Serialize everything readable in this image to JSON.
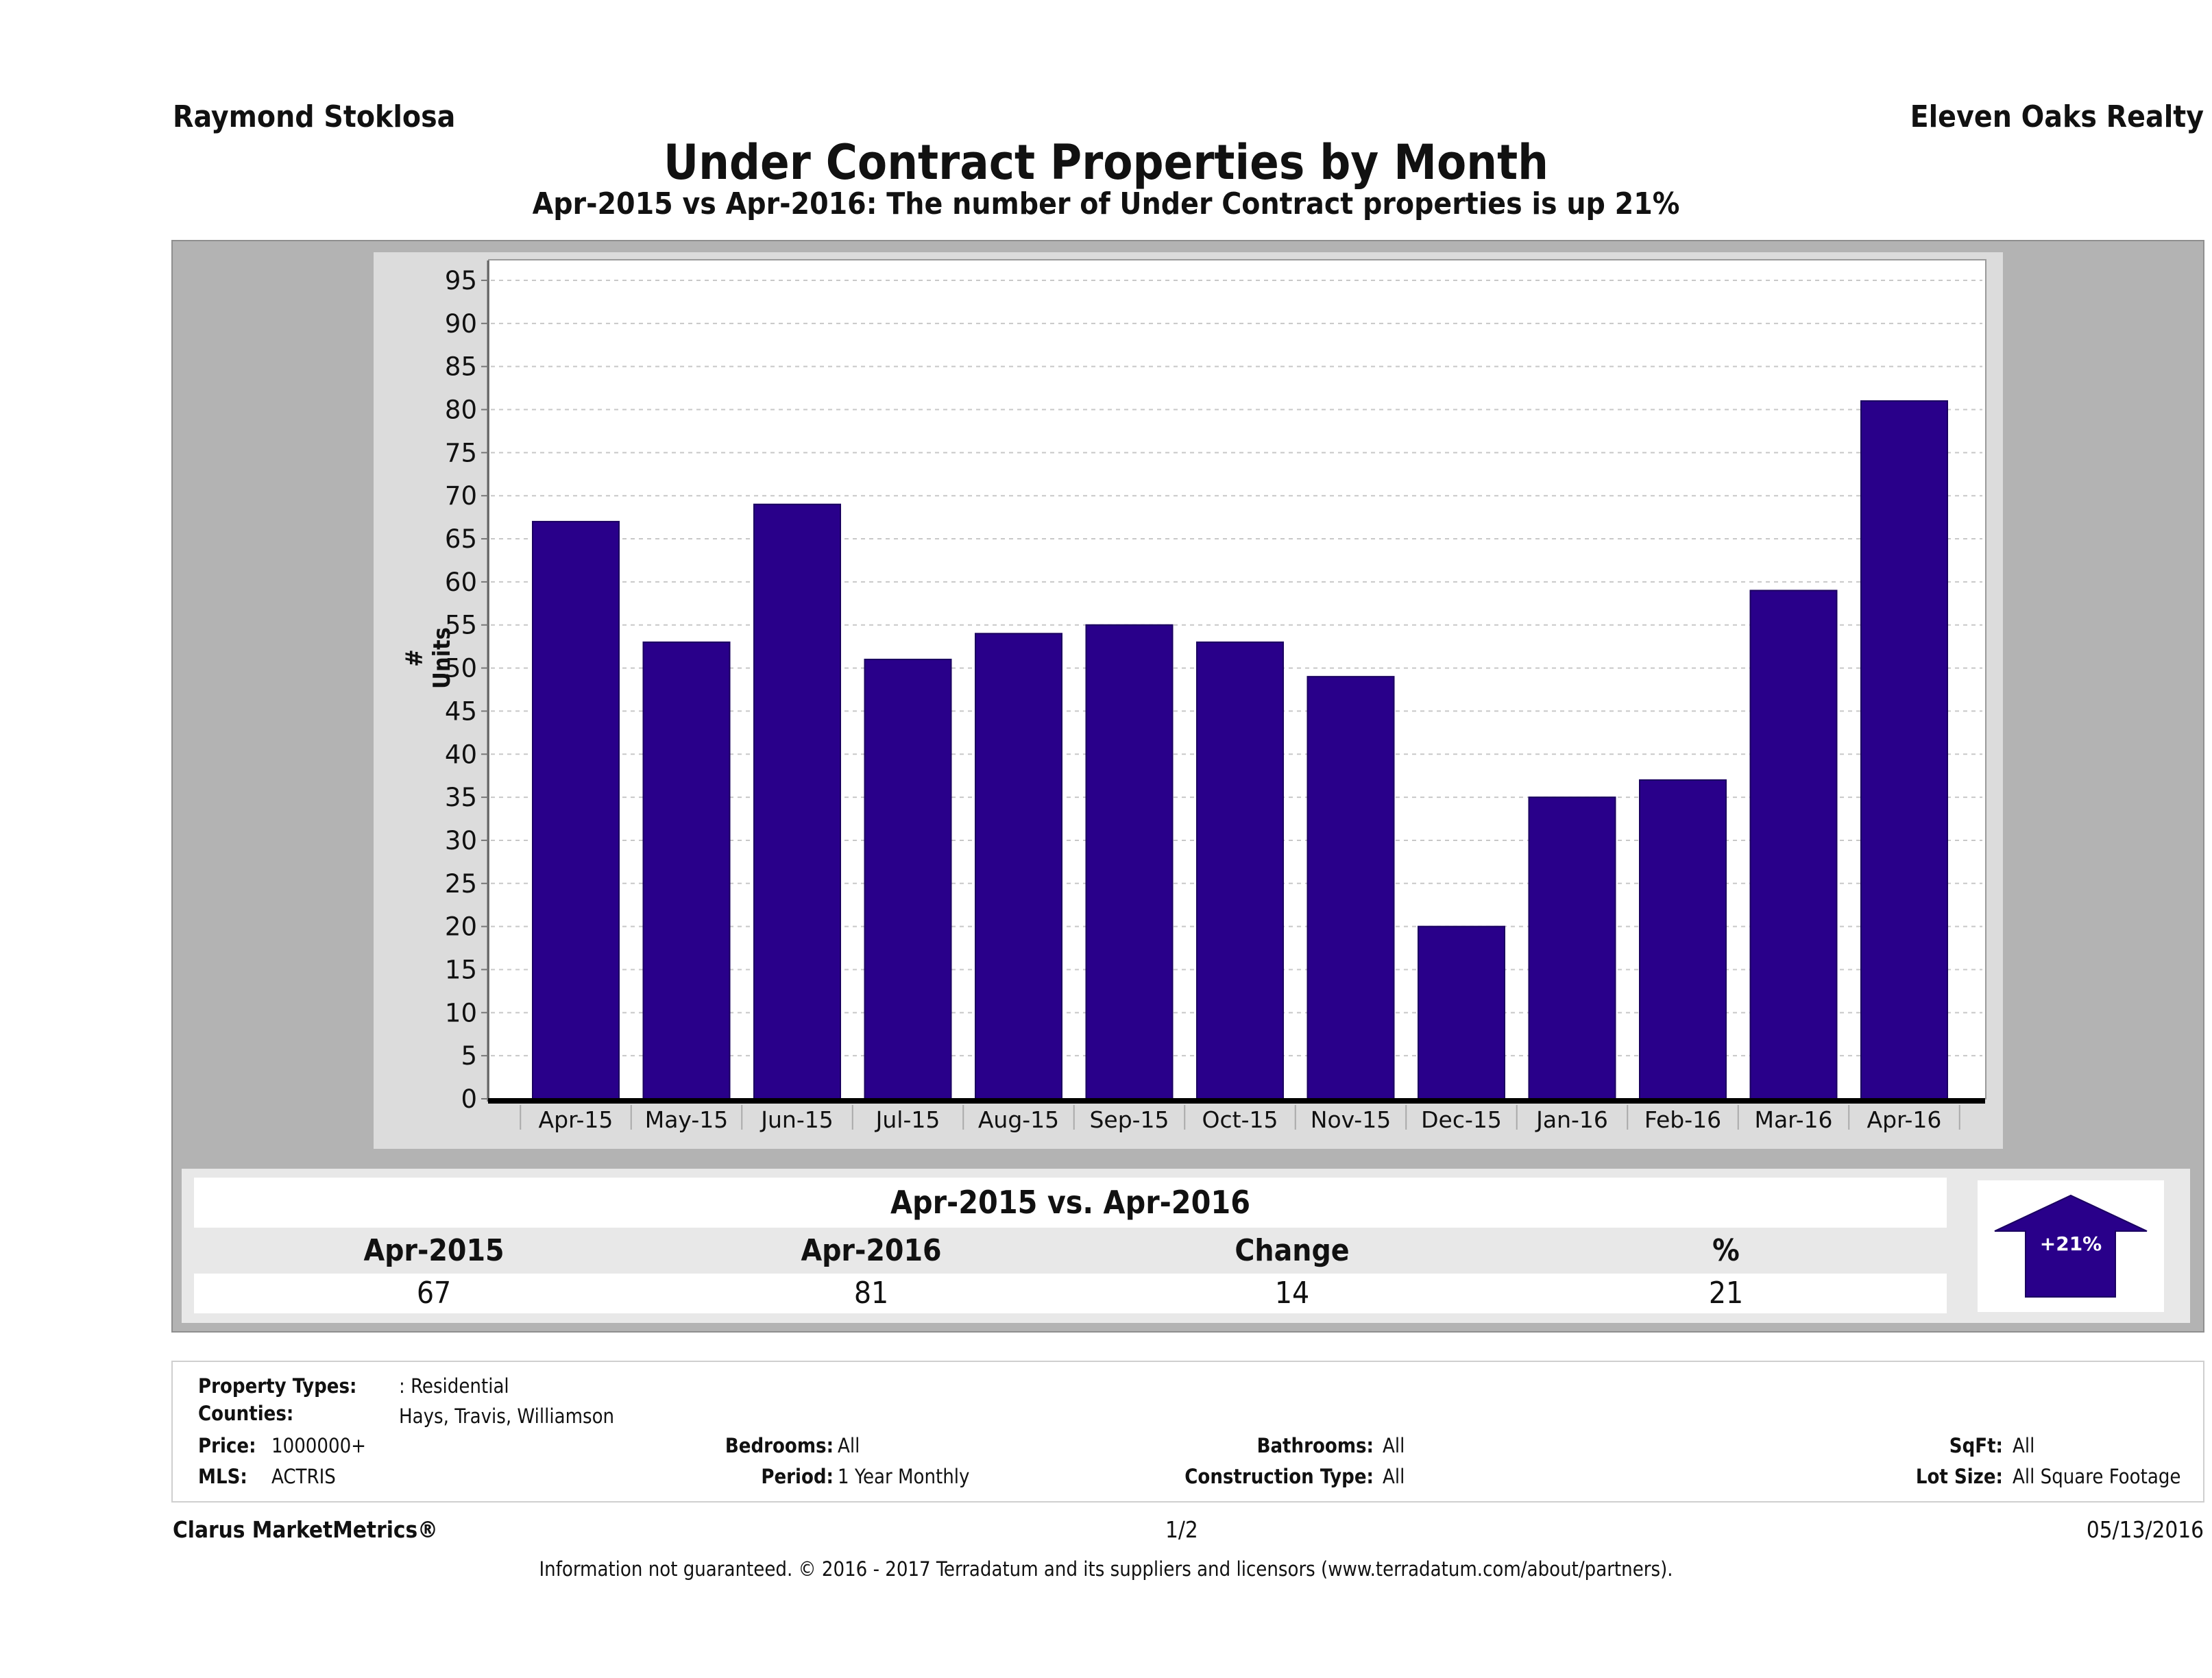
{
  "header": {
    "agent_name": "Raymond Stoklosa",
    "brokerage": "Eleven Oaks Realty"
  },
  "chart_data": {
    "type": "bar",
    "title": "Under Contract Properties by Month",
    "subtitle": "Apr-2015 vs Apr-2016: The number of Under Contract  properties is up 21%",
    "xlabel": "",
    "ylabel": "# Units",
    "ylim": [
      0,
      95
    ],
    "yticks": [
      0,
      5,
      10,
      15,
      20,
      25,
      30,
      35,
      40,
      45,
      50,
      55,
      60,
      65,
      70,
      75,
      80,
      85,
      90,
      95
    ],
    "grid": true,
    "legend": "none",
    "bar_color": "#29008a",
    "categories": [
      "Apr-15",
      "May-15",
      "Jun-15",
      "Jul-15",
      "Aug-15",
      "Sep-15",
      "Oct-15",
      "Nov-15",
      "Dec-15",
      "Jan-16",
      "Feb-16",
      "Mar-16",
      "Apr-16"
    ],
    "values": [
      67,
      53,
      69,
      51,
      54,
      55,
      53,
      49,
      20,
      35,
      37,
      59,
      81
    ]
  },
  "summary": {
    "title": "Apr-2015 vs. Apr-2016",
    "headers": [
      "Apr-2015",
      "Apr-2016",
      "Change",
      "%"
    ],
    "values": [
      "67",
      "81",
      "14",
      "21"
    ],
    "badge": "+21%",
    "badge_direction": "up",
    "badge_color": "#29008a"
  },
  "filters": {
    "property_types": {
      "label": "Property Types:",
      "value": ": Residential"
    },
    "counties": {
      "label": "Counties:",
      "value": "Hays, Travis, Williamson"
    },
    "price": {
      "label": "Price:",
      "value": "1000000+"
    },
    "mls": {
      "label": "MLS:",
      "value": "ACTRIS"
    },
    "bedrooms": {
      "label": "Bedrooms:",
      "value": "All"
    },
    "period": {
      "label": "Period:",
      "value": "1 Year Monthly"
    },
    "bathrooms": {
      "label": "Bathrooms:",
      "value": "All"
    },
    "construction_type": {
      "label": "Construction Type:",
      "value": "All"
    },
    "sqft": {
      "label": "SqFt:",
      "value": "All"
    },
    "lot_size": {
      "label": "Lot Size:",
      "value": "All Square Footage"
    }
  },
  "footer": {
    "product": "Clarus MarketMetrics®",
    "page": "1/2",
    "date": "05/13/2016",
    "disclaimer": "Information not guaranteed. © 2016 - 2017 Terradatum and its suppliers and licensors (www.terradatum.com/about/partners)."
  }
}
